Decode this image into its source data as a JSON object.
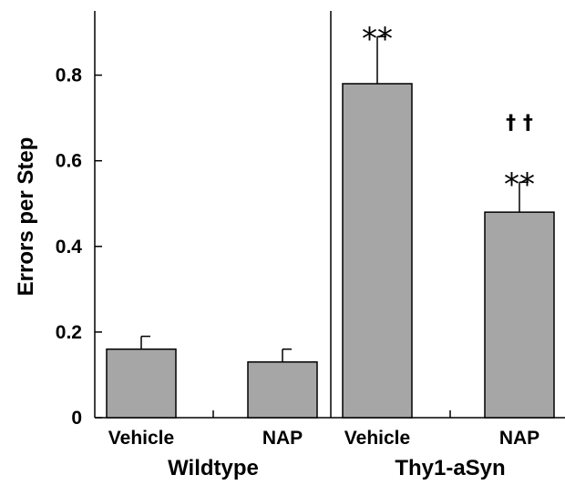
{
  "chart_data": {
    "type": "bar",
    "ylabel": "Errors per Step",
    "ylim": [
      0,
      0.95
    ],
    "yticks": [
      0,
      0.2,
      0.4,
      0.6,
      0.8
    ],
    "ytick_labels": [
      "0",
      "0.2",
      "0.4",
      "0.6",
      "0.8"
    ],
    "bar_color": "#a6a6a6",
    "groups": [
      {
        "name": "Wildtype",
        "categories": [
          "Vehicle",
          "NAP"
        ]
      },
      {
        "name": "Thy1-aSyn",
        "categories": [
          "Vehicle",
          "NAP"
        ]
      }
    ],
    "categories": [
      "Vehicle",
      "NAP",
      "Vehicle",
      "NAP"
    ],
    "values": [
      0.16,
      0.13,
      0.78,
      0.48
    ],
    "errors": [
      0.03,
      0.03,
      0.11,
      0.07
    ],
    "annotations": [
      {
        "bar": 2,
        "lines": [
          "**"
        ]
      },
      {
        "bar": 3,
        "lines": [
          "† †",
          "**"
        ]
      }
    ]
  }
}
